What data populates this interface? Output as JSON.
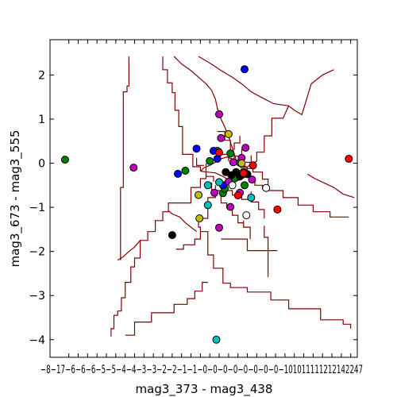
{
  "chart_data": {
    "type": "scatter",
    "xlabel": "mag3_373 - mag3_438",
    "ylabel": "mag3_673 - mag3_555",
    "xlim": [
      -1.8,
      1.47
    ],
    "ylim": [
      -4.4,
      2.8
    ],
    "grid": false,
    "y_ticks": [
      {
        "value": 2,
        "label": "2"
      },
      {
        "value": 1,
        "label": "1"
      },
      {
        "value": 0,
        "label": "0"
      },
      {
        "value": -1,
        "label": "−1"
      },
      {
        "value": -2,
        "label": "−2"
      },
      {
        "value": -3,
        "label": "−3"
      },
      {
        "value": -4,
        "label": "−4"
      }
    ],
    "x_tick_values": [
      -1.6,
      -1.5,
      -1.4,
      -1.3,
      -1.2,
      -1.1,
      -1.0,
      -0.9,
      -0.8,
      -0.7,
      -0.6,
      -0.5,
      -0.4,
      -0.3,
      -0.2,
      -0.1,
      0.0,
      0.1,
      0.2,
      0.3,
      0.4,
      0.5,
      0.6,
      0.7,
      0.8,
      0.9,
      1.0,
      1.1,
      1.2,
      1.3,
      1.4
    ],
    "x_tick_label_text": "−8−17−6−6−6−5−5−4−4−3−3−2−2−1−1−0−0−0−0−0−0−0−0−101011111212142247",
    "colors": {
      "boundary": "#800000",
      "blue": "#0000ff",
      "green": "#008000",
      "red": "#ff0000",
      "cyan": "#00bfbf",
      "magenta": "#bf00bf",
      "yellow": "#bfbf00",
      "black": "#000000",
      "white": "#ffffff"
    },
    "series": [
      {
        "color": "green",
        "points": [
          [
            -1.64,
            0.08
          ],
          [
            -0.36,
            -0.17
          ],
          [
            -0.1,
            0.05
          ],
          [
            -0.02,
            0.28
          ],
          [
            0.04,
            -0.68
          ],
          [
            0.06,
            -0.58
          ],
          [
            0.12,
            0.22
          ],
          [
            0.16,
            -0.35
          ],
          [
            0.22,
            0.01
          ],
          [
            0.27,
            -0.5
          ]
        ]
      },
      {
        "color": "magenta",
        "points": [
          [
            -0.91,
            -0.1
          ],
          [
            -0.05,
            -0.67
          ],
          [
            0.0,
            1.11
          ],
          [
            0.0,
            -1.46
          ],
          [
            0.02,
            0.57
          ],
          [
            0.1,
            -0.42
          ],
          [
            0.12,
            -0.99
          ],
          [
            0.15,
            0.02
          ],
          [
            0.22,
            -0.67
          ],
          [
            0.24,
            0.12
          ],
          [
            0.28,
            0.35
          ],
          [
            0.35,
            -0.37
          ]
        ]
      },
      {
        "color": "blue",
        "points": [
          [
            -0.44,
            -0.24
          ],
          [
            -0.24,
            0.33
          ],
          [
            -0.06,
            0.28
          ],
          [
            -0.02,
            0.1
          ],
          [
            0.04,
            -0.5
          ],
          [
            0.27,
            2.13
          ]
        ]
      },
      {
        "color": "black",
        "points": [
          [
            -0.5,
            -1.63
          ],
          [
            0.07,
            -0.2
          ],
          [
            0.13,
            -0.27
          ],
          [
            0.18,
            -0.2
          ],
          [
            0.22,
            -0.3
          ],
          [
            0.26,
            -0.2
          ],
          [
            0.3,
            -0.25
          ]
        ]
      },
      {
        "color": "red",
        "points": [
          [
            0.0,
            0.24
          ],
          [
            0.2,
            -0.73
          ],
          [
            0.26,
            -0.23
          ],
          [
            0.36,
            -0.05
          ],
          [
            0.62,
            -1.05
          ],
          [
            1.38,
            0.1
          ]
        ]
      },
      {
        "color": "yellow",
        "points": [
          [
            -0.22,
            -0.72
          ],
          [
            -0.21,
            -1.25
          ],
          [
            0.1,
            0.66
          ],
          [
            0.24,
            0.0
          ]
        ]
      },
      {
        "color": "cyan",
        "points": [
          [
            -0.12,
            -0.95
          ],
          [
            -0.03,
            -4.0
          ],
          [
            -0.12,
            -0.5
          ],
          [
            0.0,
            -0.43
          ],
          [
            0.34,
            -0.78
          ]
        ]
      },
      {
        "color": "white",
        "points": [
          [
            0.29,
            -1.18
          ],
          [
            0.5,
            -0.56
          ],
          [
            0.14,
            -0.5
          ]
        ]
      }
    ],
    "decision_boundaries": [
      [
        [
          -1.15,
          -3.93
        ],
        [
          -1.15,
          -3.75
        ],
        [
          -1.12,
          -3.75
        ],
        [
          -1.12,
          -3.45
        ],
        [
          -1.08,
          -3.45
        ],
        [
          -1.08,
          -3.35
        ],
        [
          -1.04,
          -3.35
        ],
        [
          -1.04,
          -3.05
        ],
        [
          -1.0,
          -3.05
        ],
        [
          -1.0,
          -2.7
        ],
        [
          -0.94,
          -2.7
        ],
        [
          -0.94,
          -2.35
        ],
        [
          -0.9,
          -2.35
        ],
        [
          -0.9,
          -2.15
        ],
        [
          -0.84,
          -2.15
        ],
        [
          -0.84,
          -1.75
        ],
        [
          -0.76,
          -1.75
        ],
        [
          -0.76,
          -1.55
        ],
        [
          -0.68,
          -1.55
        ],
        [
          -0.68,
          -1.3
        ],
        [
          -0.6,
          -1.3
        ],
        [
          -0.6,
          -1.1
        ],
        [
          -0.54,
          -1.1
        ],
        [
          -0.54,
          -0.9
        ],
        [
          -0.3,
          -0.9
        ],
        [
          -0.3,
          -0.55
        ],
        [
          -0.2,
          -0.55
        ],
        [
          -0.2,
          -0.35
        ],
        [
          -0.14,
          -0.35
        ],
        [
          -0.14,
          -0.2
        ]
      ],
      [
        [
          -1.08,
          -2.2
        ],
        [
          -1.02,
          -2.12
        ],
        [
          -0.96,
          -2.0
        ],
        [
          -0.9,
          -1.9
        ],
        [
          -0.84,
          -1.75
        ]
      ],
      [
        [
          -1.05,
          -2.2
        ],
        [
          -1.05,
          -0.55
        ],
        [
          -1.02,
          -0.55
        ],
        [
          -1.02,
          1.62
        ],
        [
          -0.98,
          1.62
        ],
        [
          -0.98,
          1.75
        ],
        [
          -0.96,
          1.75
        ],
        [
          -0.96,
          2.42
        ]
      ],
      [
        [
          -0.6,
          2.42
        ],
        [
          -0.6,
          2.12
        ],
        [
          -0.55,
          2.12
        ],
        [
          -0.55,
          1.82
        ],
        [
          -0.5,
          1.82
        ],
        [
          -0.5,
          1.6
        ],
        [
          -0.47,
          1.6
        ],
        [
          -0.47,
          1.2
        ],
        [
          -0.43,
          1.2
        ],
        [
          -0.43,
          0.83
        ],
        [
          -0.39,
          0.83
        ],
        [
          -0.39,
          0.2
        ],
        [
          -0.28,
          0.2
        ],
        [
          -0.28,
          -0.08
        ],
        [
          -0.2,
          -0.08
        ],
        [
          -0.2,
          -0.18
        ]
      ],
      [
        [
          -0.48,
          2.42
        ],
        [
          -0.4,
          2.25
        ],
        [
          -0.3,
          2.1
        ],
        [
          -0.22,
          1.95
        ],
        [
          -0.14,
          1.8
        ],
        [
          -0.08,
          1.65
        ],
        [
          -0.04,
          1.45
        ],
        [
          -0.02,
          1.25
        ],
        [
          0.02,
          1.0
        ],
        [
          0.06,
          0.82
        ],
        [
          0.1,
          0.6
        ],
        [
          0.14,
          0.35
        ],
        [
          0.18,
          0.08
        ]
      ],
      [
        [
          -0.22,
          2.42
        ],
        [
          -0.1,
          2.27
        ],
        [
          0.02,
          2.1
        ],
        [
          0.14,
          1.95
        ],
        [
          0.24,
          1.8
        ],
        [
          0.34,
          1.62
        ],
        [
          0.46,
          1.48
        ],
        [
          0.58,
          1.35
        ],
        [
          0.74,
          1.3
        ],
        [
          0.8,
          1.2
        ],
        [
          0.88,
          1.1
        ],
        [
          0.98,
          1.8
        ],
        [
          1.1,
          2.0
        ],
        [
          1.22,
          2.12
        ]
      ],
      [
        [
          0.74,
          1.3
        ],
        [
          0.68,
          1.02
        ],
        [
          0.56,
          1.02
        ],
        [
          0.56,
          0.62
        ],
        [
          0.48,
          0.62
        ],
        [
          0.48,
          0.25
        ],
        [
          0.4,
          0.25
        ],
        [
          0.4,
          0.05
        ],
        [
          0.3,
          -0.08
        ],
        [
          0.22,
          -0.1
        ]
      ],
      [
        [
          0.52,
          -0.62
        ],
        [
          0.68,
          -0.62
        ],
        [
          0.68,
          -0.78
        ],
        [
          0.84,
          -0.78
        ],
        [
          0.84,
          -0.95
        ],
        [
          1.0,
          -0.95
        ],
        [
          1.0,
          -1.1
        ],
        [
          1.18,
          -1.1
        ],
        [
          1.18,
          -1.22
        ],
        [
          1.38,
          -1.22
        ]
      ],
      [
        [
          0.52,
          -0.62
        ],
        [
          0.52,
          -0.36
        ],
        [
          0.46,
          -0.36
        ],
        [
          0.46,
          -0.2
        ],
        [
          0.36,
          -0.2
        ],
        [
          0.36,
          -0.12
        ],
        [
          0.26,
          -0.12
        ]
      ],
      [
        [
          1.44,
          -0.78
        ],
        [
          1.32,
          -0.7
        ],
        [
          1.22,
          -0.55
        ],
        [
          1.12,
          -0.45
        ],
        [
          1.02,
          -0.35
        ],
        [
          0.94,
          -0.25
        ]
      ],
      [
        [
          -0.04,
          -0.5
        ],
        [
          -0.04,
          -0.78
        ],
        [
          -0.12,
          -0.78
        ],
        [
          -0.12,
          -1.25
        ],
        [
          -0.22,
          -1.25
        ],
        [
          -0.22,
          -1.45
        ],
        [
          -0.2,
          -1.45
        ],
        [
          -0.2,
          -1.55
        ],
        [
          -0.12,
          -1.55
        ],
        [
          -0.12,
          -2.08
        ],
        [
          -0.06,
          -2.08
        ],
        [
          -0.06,
          -2.38
        ],
        [
          0.04,
          -2.38
        ],
        [
          0.04,
          -2.72
        ],
        [
          0.12,
          -2.72
        ],
        [
          0.12,
          -2.82
        ],
        [
          0.3,
          -2.82
        ],
        [
          0.3,
          -2.92
        ],
        [
          0.55,
          -2.92
        ],
        [
          0.55,
          -3.1
        ],
        [
          0.74,
          -3.1
        ],
        [
          0.74,
          -3.3
        ],
        [
          1.08,
          -3.3
        ],
        [
          1.08,
          -3.55
        ],
        [
          1.32,
          -3.55
        ],
        [
          1.32,
          -3.65
        ],
        [
          1.4,
          -3.65
        ],
        [
          1.4,
          -3.75
        ]
      ],
      [
        [
          -0.12,
          -2.7
        ],
        [
          -0.18,
          -2.7
        ],
        [
          -0.18,
          -2.9
        ],
        [
          -0.26,
          -2.9
        ],
        [
          -0.26,
          -3.07
        ],
        [
          -0.34,
          -3.07
        ],
        [
          -0.34,
          -3.2
        ],
        [
          -0.48,
          -3.2
        ],
        [
          -0.48,
          -3.39
        ],
        [
          -0.72,
          -3.39
        ],
        [
          -0.72,
          -3.6
        ],
        [
          -0.9,
          -3.6
        ],
        [
          -0.9,
          -3.9
        ],
        [
          -1.0,
          -3.9
        ]
      ],
      [
        [
          0.02,
          -1.72
        ],
        [
          0.3,
          -1.72
        ],
        [
          0.3,
          -1.98
        ],
        [
          0.62,
          -1.98
        ]
      ],
      [
        [
          0.26,
          -1.3
        ],
        [
          0.26,
          -1.45
        ],
        [
          0.33,
          -1.45
        ],
        [
          0.33,
          -1.72
        ]
      ],
      [
        [
          -0.46,
          -1.95
        ],
        [
          -0.38,
          -1.95
        ],
        [
          -0.38,
          -1.85
        ],
        [
          -0.26,
          -1.85
        ],
        [
          -0.26,
          -1.72
        ],
        [
          -0.2,
          -1.72
        ],
        [
          -0.2,
          -1.55
        ]
      ],
      [
        [
          0.48,
          -1.25
        ],
        [
          0.48,
          -1.05
        ],
        [
          0.42,
          -1.05
        ],
        [
          0.42,
          -0.88
        ],
        [
          0.34,
          -0.88
        ],
        [
          0.34,
          -0.64
        ]
      ],
      [
        [
          -0.24,
          -1.55
        ],
        [
          -0.3,
          -1.45
        ],
        [
          -0.36,
          -1.35
        ],
        [
          -0.42,
          -1.22
        ],
        [
          -0.5,
          -1.15
        ],
        [
          -0.54,
          -1.08
        ]
      ],
      [
        [
          0.48,
          -1.42
        ],
        [
          0.48,
          -1.68
        ],
        [
          0.52,
          -1.68
        ],
        [
          0.52,
          -2.58
        ]
      ],
      [
        [
          0.02,
          -0.62
        ],
        [
          0.02,
          -0.9
        ],
        [
          0.08,
          -0.9
        ],
        [
          0.08,
          -1.02
        ],
        [
          0.14,
          -1.02
        ],
        [
          0.14,
          -1.18
        ],
        [
          0.2,
          -1.18
        ],
        [
          0.2,
          -1.35
        ],
        [
          0.26,
          -1.35
        ]
      ],
      [
        [
          -0.12,
          -0.45
        ],
        [
          -0.08,
          -0.45
        ],
        [
          -0.08,
          -0.62
        ],
        [
          0.02,
          -0.62
        ]
      ],
      [
        [
          0.02,
          -0.62
        ],
        [
          0.14,
          -0.62
        ],
        [
          0.14,
          -0.72
        ],
        [
          0.24,
          -0.72
        ],
        [
          0.24,
          -0.82
        ],
        [
          0.34,
          -0.82
        ]
      ],
      [
        [
          -0.2,
          -0.18
        ],
        [
          -0.16,
          -0.1
        ],
        [
          -0.1,
          -0.05
        ],
        [
          -0.04,
          0.02
        ],
        [
          0.02,
          0.1
        ],
        [
          0.08,
          0.14
        ],
        [
          0.14,
          0.1
        ],
        [
          0.18,
          0.08
        ]
      ],
      [
        [
          0.18,
          0.08
        ],
        [
          0.24,
          -0.02
        ],
        [
          0.3,
          -0.1
        ],
        [
          0.3,
          -0.28
        ],
        [
          0.24,
          -0.36
        ],
        [
          0.16,
          -0.42
        ],
        [
          0.1,
          -0.38
        ],
        [
          0.04,
          -0.3
        ],
        [
          -0.04,
          -0.22
        ],
        [
          -0.12,
          -0.2
        ],
        [
          -0.2,
          -0.18
        ]
      ],
      [
        [
          -0.06,
          0.32
        ],
        [
          0.02,
          0.32
        ],
        [
          0.02,
          0.2
        ],
        [
          0.1,
          0.2
        ],
        [
          0.1,
          0.04
        ]
      ],
      [
        [
          0.24,
          0.32
        ],
        [
          0.24,
          0.16
        ],
        [
          0.16,
          0.16
        ],
        [
          0.16,
          0.04
        ]
      ],
      [
        [
          -0.14,
          0.0
        ],
        [
          -0.14,
          -0.3
        ],
        [
          -0.06,
          -0.3
        ],
        [
          -0.06,
          -0.42
        ]
      ],
      [
        [
          0.3,
          -0.28
        ],
        [
          0.38,
          -0.34
        ],
        [
          0.38,
          -0.5
        ],
        [
          0.46,
          -0.5
        ],
        [
          0.46,
          -0.58
        ],
        [
          0.52,
          -0.62
        ]
      ],
      [
        [
          -0.02,
          0.72
        ],
        [
          0.06,
          0.72
        ],
        [
          0.06,
          0.52
        ],
        [
          0.12,
          0.52
        ],
        [
          0.12,
          0.3
        ]
      ],
      [
        [
          0.22,
          0.62
        ],
        [
          0.22,
          0.46
        ],
        [
          0.16,
          0.46
        ],
        [
          0.16,
          0.3
        ]
      ],
      [
        [
          -0.24,
          0.12
        ],
        [
          -0.24,
          -0.05
        ],
        [
          -0.16,
          -0.05
        ]
      ],
      [
        [
          0.34,
          0.18
        ],
        [
          0.34,
          0.02
        ],
        [
          0.28,
          0.02
        ]
      ]
    ]
  }
}
